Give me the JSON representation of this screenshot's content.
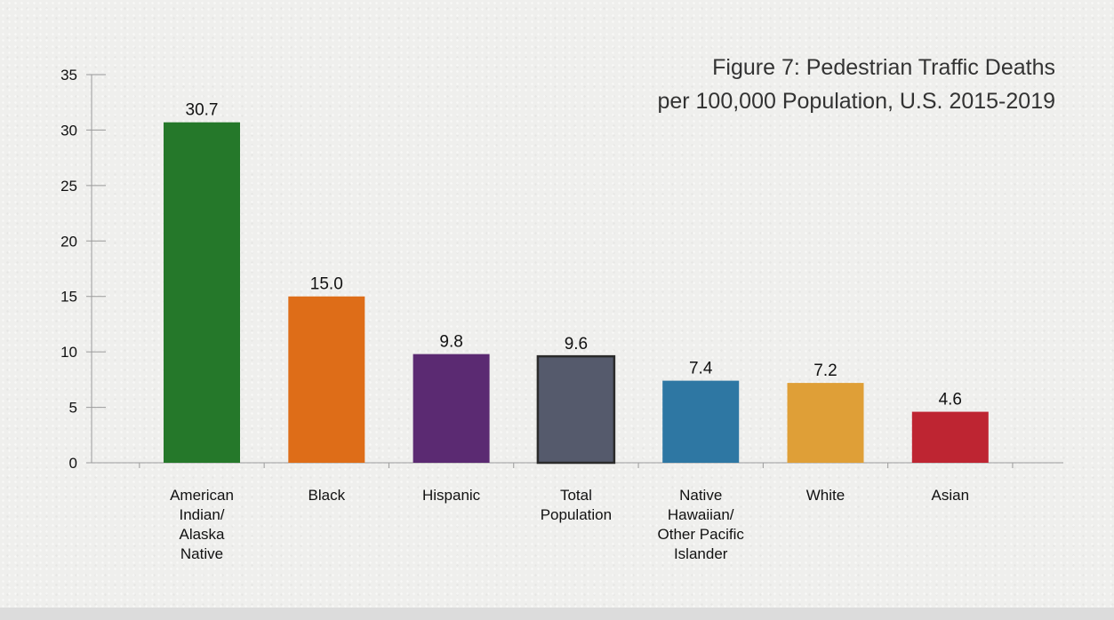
{
  "chart_data": {
    "type": "bar",
    "title": [
      "Figure 7: Pedestrian Traffic Deaths",
      "per 100,000 Population, U.S. 2015-2019"
    ],
    "xlabel": "",
    "ylabel": "",
    "ylim": [
      0,
      35
    ],
    "yticks": [
      0,
      5,
      10,
      15,
      20,
      25,
      30,
      35
    ],
    "grid": false,
    "categories": [
      [
        "American",
        "Indian/",
        "Alaska",
        "Native"
      ],
      [
        "Black"
      ],
      [
        "Hispanic"
      ],
      [
        "Total",
        "Population"
      ],
      [
        "Native",
        "Hawaiian/",
        "Other Pacific",
        "Islander"
      ],
      [
        "White"
      ],
      [
        "Asian"
      ]
    ],
    "values": [
      30.7,
      15.0,
      9.8,
      9.6,
      7.4,
      7.2,
      4.6
    ],
    "value_labels": [
      "30.7",
      "15.0",
      "9.8",
      "9.6",
      "7.4",
      "7.2",
      "4.6"
    ],
    "colors": [
      "#25782a",
      "#de6d18",
      "#5b2a72",
      "#555a6c",
      "#2e77a3",
      "#df9f37",
      "#be2532"
    ],
    "outlined_bar_index": 3
  }
}
